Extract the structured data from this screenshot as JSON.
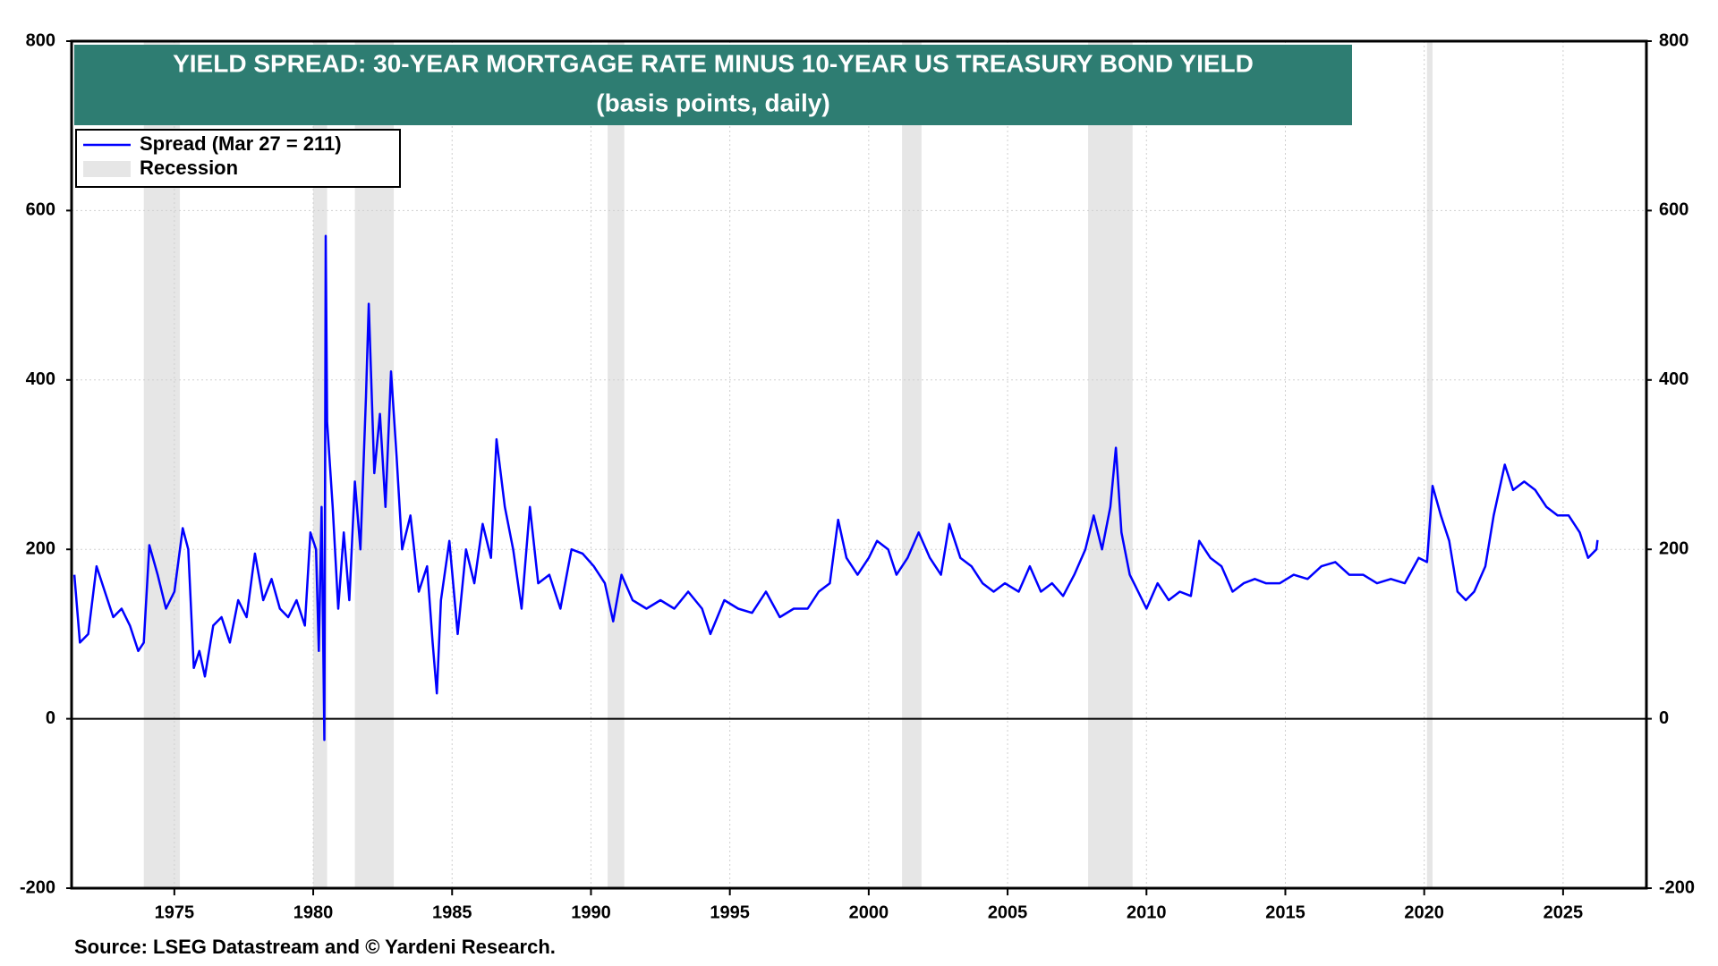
{
  "chart_data": {
    "type": "line",
    "title": "YIELD SPREAD: 30-YEAR MORTGAGE RATE MINUS 10-YEAR US TREASURY BOND YIELD",
    "subtitle": "(basis points, daily)",
    "source": "Source: LSEG Datastream and © Yardeni Research.",
    "xlim": [
      1971.3,
      2028
    ],
    "xticks": [
      1975,
      1980,
      1985,
      1990,
      1995,
      2000,
      2005,
      2010,
      2015,
      2020,
      2025
    ],
    "ylim": [
      -200,
      800
    ],
    "yticks": [
      -200,
      0,
      200,
      400,
      600,
      800
    ],
    "grid": true,
    "legend": "top-left",
    "recession_name": "Recession",
    "recession_color": "#e6e6e6",
    "recessions": [
      [
        1973.9,
        1975.2
      ],
      [
        1980.0,
        1980.5
      ],
      [
        1981.5,
        1982.9
      ],
      [
        1990.6,
        1991.2
      ],
      [
        2001.2,
        2001.9
      ],
      [
        2007.9,
        2009.5
      ],
      [
        2020.1,
        2020.3
      ]
    ],
    "x": [
      1971.4,
      1971.6,
      1971.9,
      1972.2,
      1972.5,
      1972.8,
      1973.1,
      1973.4,
      1973.7,
      1973.9,
      1974.1,
      1974.4,
      1974.7,
      1975.0,
      1975.3,
      1975.5,
      1975.7,
      1975.9,
      1976.1,
      1976.4,
      1976.7,
      1977.0,
      1977.3,
      1977.6,
      1977.9,
      1978.2,
      1978.5,
      1978.8,
      1979.1,
      1979.4,
      1979.7,
      1979.9,
      1980.1,
      1980.2,
      1980.3,
      1980.4,
      1980.45,
      1980.5,
      1980.7,
      1980.9,
      1981.1,
      1981.3,
      1981.5,
      1981.7,
      1981.9,
      1982.0,
      1982.2,
      1982.4,
      1982.6,
      1982.8,
      1983.0,
      1983.2,
      1983.5,
      1983.8,
      1984.1,
      1984.3,
      1984.45,
      1984.6,
      1984.9,
      1985.2,
      1985.5,
      1985.8,
      1986.1,
      1986.4,
      1986.6,
      1986.9,
      1987.2,
      1987.5,
      1987.8,
      1988.1,
      1988.5,
      1988.9,
      1989.3,
      1989.7,
      1990.1,
      1990.5,
      1990.8,
      1991.1,
      1991.5,
      1992.0,
      1992.5,
      1993.0,
      1993.5,
      1994.0,
      1994.3,
      1994.8,
      1995.3,
      1995.8,
      1996.3,
      1996.8,
      1997.3,
      1997.8,
      1998.2,
      1998.6,
      1998.9,
      1999.2,
      1999.6,
      2000.0,
      2000.3,
      2000.7,
      2001.0,
      2001.4,
      2001.8,
      2002.2,
      2002.6,
      2002.9,
      2003.3,
      2003.7,
      2004.1,
      2004.5,
      2004.9,
      2005.4,
      2005.8,
      2006.2,
      2006.6,
      2007.0,
      2007.4,
      2007.8,
      2008.1,
      2008.4,
      2008.7,
      2008.9,
      2009.1,
      2009.4,
      2009.7,
      2010.0,
      2010.4,
      2010.8,
      2011.2,
      2011.6,
      2011.9,
      2012.3,
      2012.7,
      2013.1,
      2013.5,
      2013.9,
      2014.3,
      2014.8,
      2015.3,
      2015.8,
      2016.3,
      2016.8,
      2017.3,
      2017.8,
      2018.3,
      2018.8,
      2019.3,
      2019.8,
      2020.1,
      2020.3,
      2020.6,
      2020.9,
      2021.2,
      2021.5,
      2021.8,
      2022.2,
      2022.5,
      2022.9,
      2023.2,
      2023.6,
      2024.0,
      2024.4,
      2024.8,
      2025.2,
      2025.6,
      2025.9,
      2026.2,
      2026.24
    ],
    "series": [
      {
        "name": "Spread (Mar 27 = 211)",
        "color": "#0000ff",
        "values": [
          170,
          90,
          100,
          180,
          150,
          120,
          130,
          110,
          80,
          90,
          205,
          170,
          130,
          150,
          225,
          200,
          60,
          80,
          50,
          110,
          120,
          90,
          140,
          120,
          195,
          140,
          165,
          130,
          120,
          140,
          110,
          220,
          200,
          80,
          250,
          -25,
          570,
          350,
          250,
          130,
          220,
          140,
          280,
          200,
          380,
          490,
          290,
          360,
          250,
          410,
          310,
          200,
          240,
          150,
          180,
          90,
          30,
          140,
          210,
          100,
          200,
          160,
          230,
          190,
          330,
          250,
          200,
          130,
          250,
          160,
          170,
          130,
          200,
          195,
          180,
          160,
          115,
          170,
          140,
          130,
          140,
          130,
          150,
          130,
          100,
          140,
          130,
          125,
          150,
          120,
          130,
          130,
          150,
          160,
          235,
          190,
          170,
          190,
          210,
          200,
          170,
          190,
          220,
          190,
          170,
          230,
          190,
          180,
          160,
          150,
          160,
          150,
          180,
          150,
          160,
          145,
          170,
          200,
          240,
          200,
          250,
          320,
          220,
          170,
          150,
          130,
          160,
          140,
          150,
          145,
          210,
          190,
          180,
          150,
          160,
          165,
          160,
          160,
          170,
          165,
          180,
          185,
          170,
          170,
          160,
          165,
          160,
          190,
          185,
          275,
          240,
          210,
          150,
          140,
          150,
          180,
          240,
          300,
          270,
          280,
          270,
          250,
          240,
          240,
          220,
          190,
          200,
          211
        ]
      }
    ]
  }
}
